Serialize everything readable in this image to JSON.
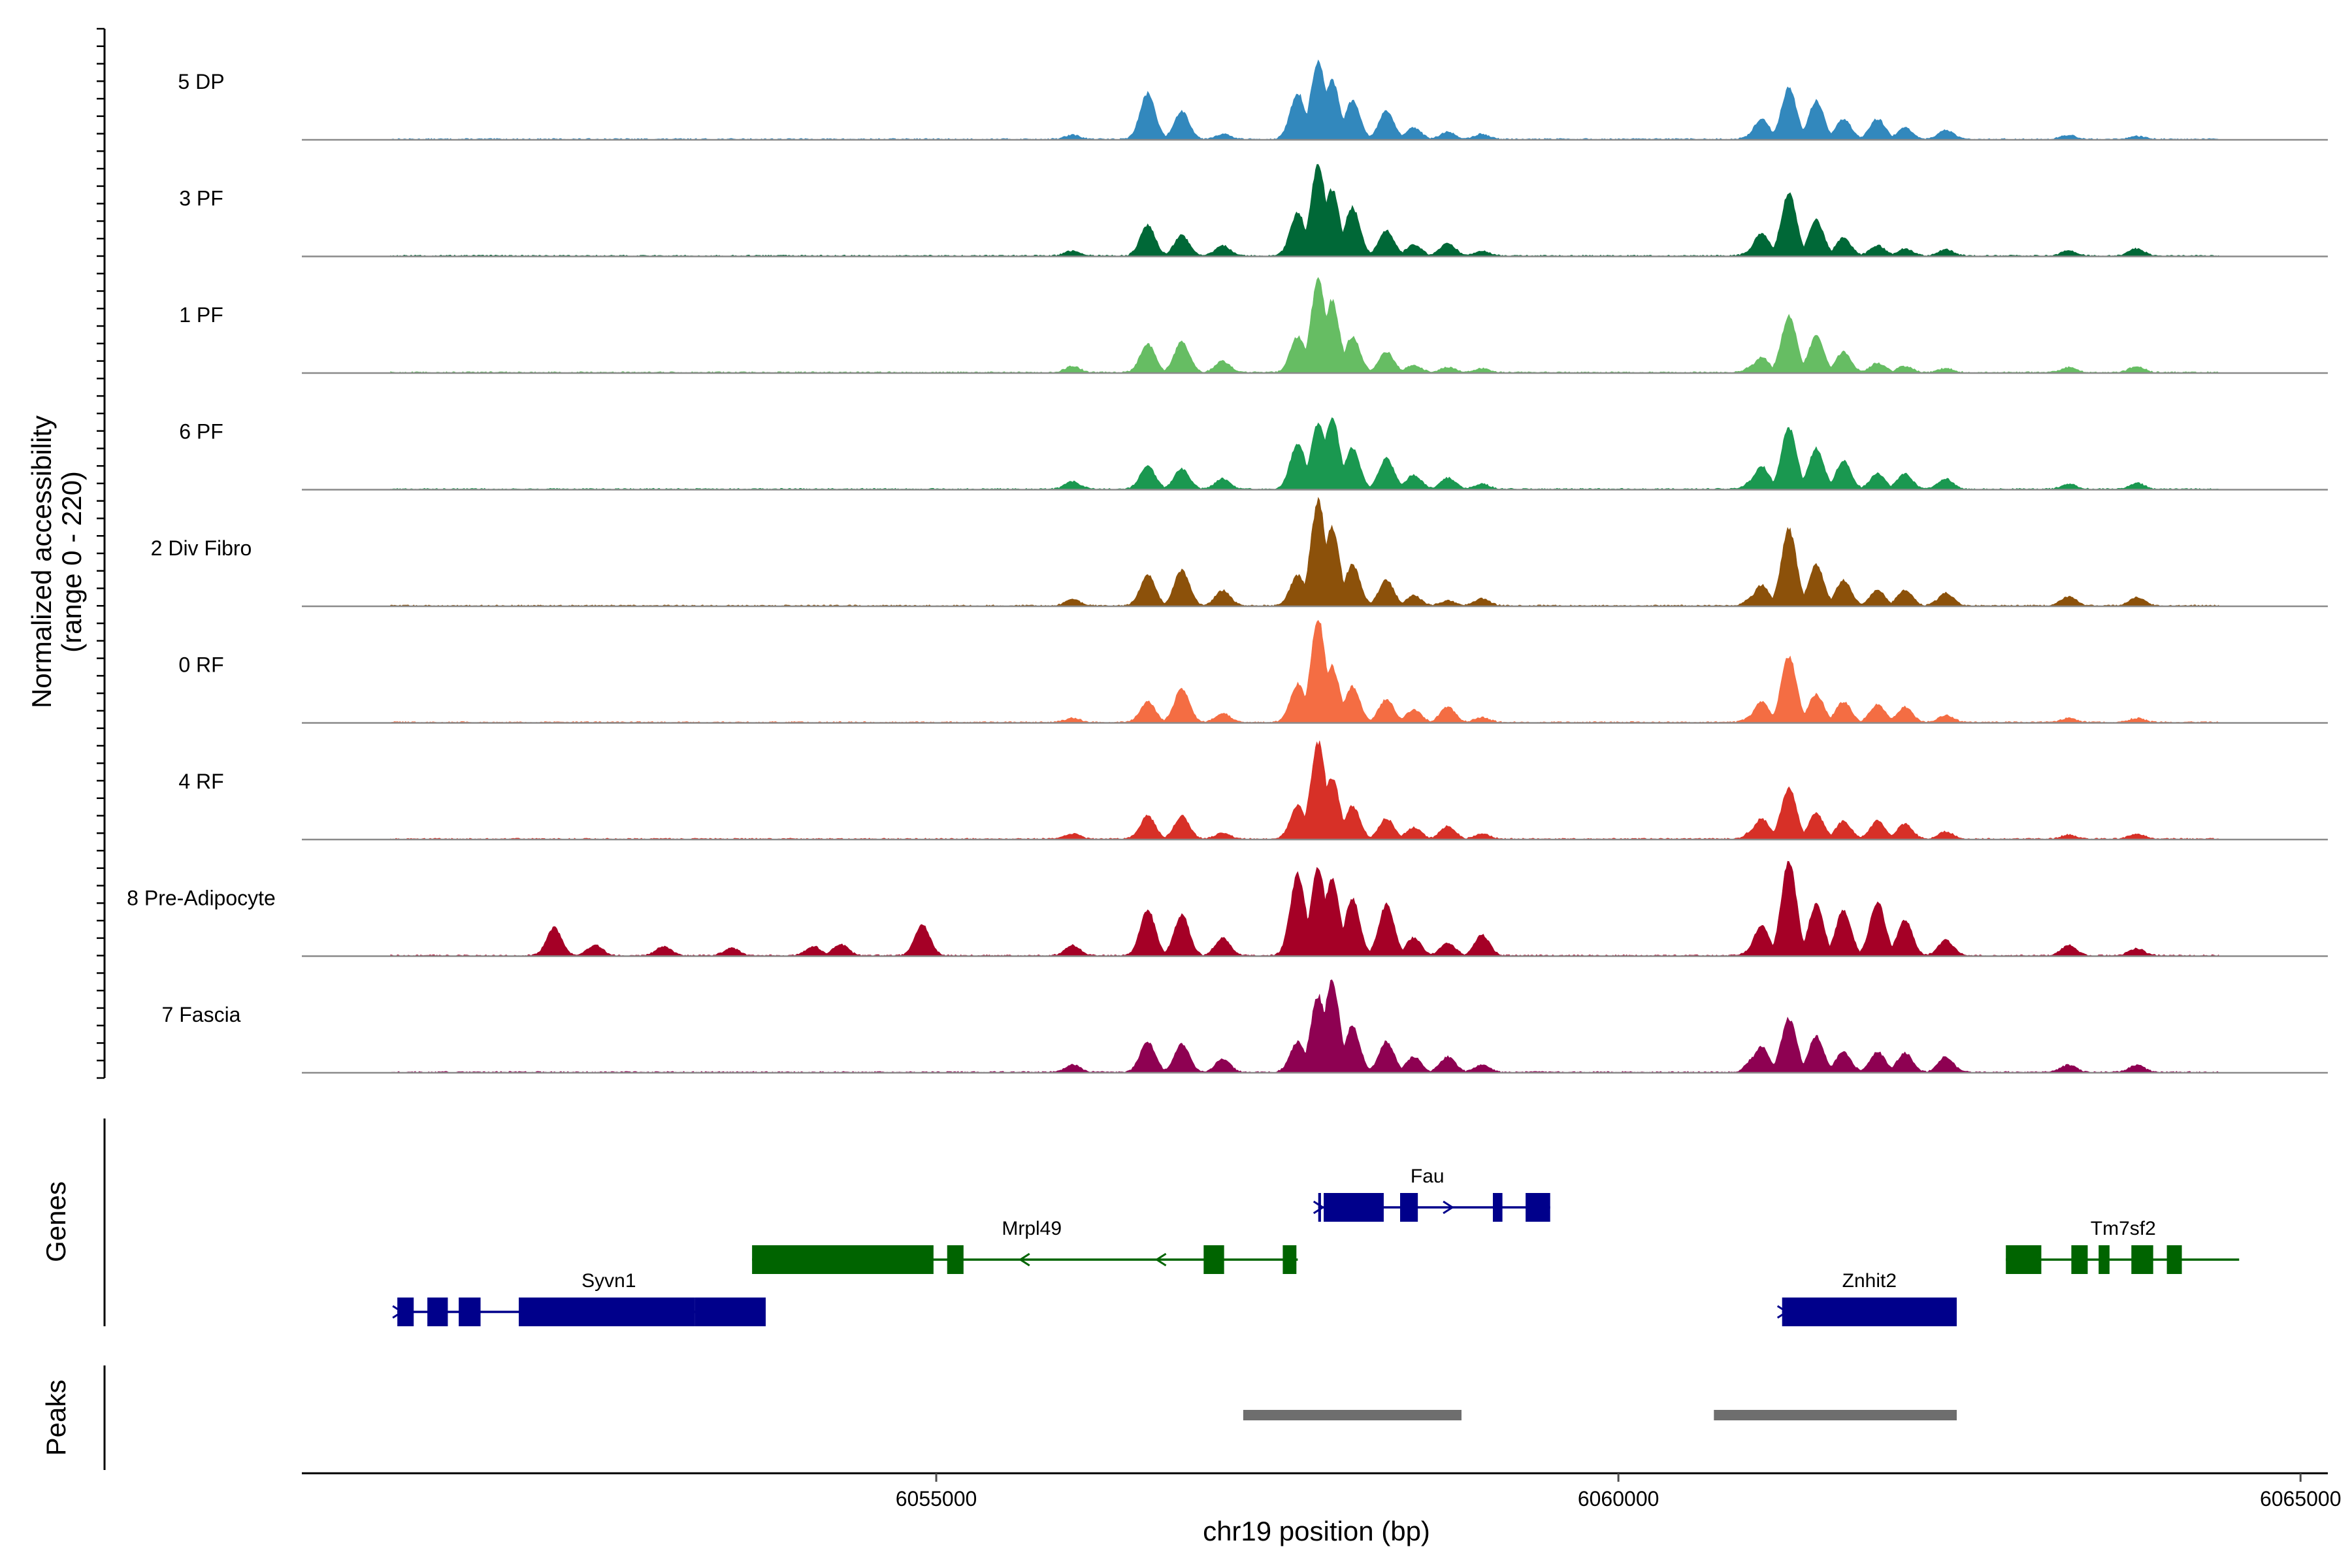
{
  "chart_data": {
    "type": "area",
    "title": "",
    "xlabel": "chr19 position (bp)",
    "ylabel": "Normalized accessibility",
    "ylabel_range": "(range 0 - 220)",
    "ylim": [
      0,
      220
    ],
    "x_range": [
      6050350,
      6065200
    ],
    "x_ticks": [
      6055000,
      6060000,
      6065000
    ],
    "x_tick_labels": [
      "6055000",
      "6060000",
      "6065000"
    ],
    "genes_label": "Genes",
    "peaks_label": "Peaks",
    "tracks": [
      {
        "name": "5 DP",
        "color": "#3288BD",
        "peaks": [
          [
            6056000,
            8
          ],
          [
            6056550,
            90
          ],
          [
            6056800,
            55
          ],
          [
            6057100,
            10
          ],
          [
            6057650,
            90
          ],
          [
            6057800,
            150
          ],
          [
            6057900,
            115
          ],
          [
            6058050,
            75
          ],
          [
            6058300,
            55
          ],
          [
            6058500,
            22
          ],
          [
            6058750,
            14
          ],
          [
            6059000,
            10
          ],
          [
            6061000,
            10
          ],
          [
            6061000,
            12
          ],
          [
            6061050,
            40
          ],
          [
            6061250,
            100
          ],
          [
            6061450,
            75
          ],
          [
            6061650,
            40
          ],
          [
            6061900,
            40
          ],
          [
            6062100,
            22
          ],
          [
            6062400,
            18
          ],
          [
            6063300,
            8
          ],
          [
            6063800,
            6
          ]
        ]
      },
      {
        "name": "3 PF",
        "color": "#006837",
        "peaks": [
          [
            6056000,
            10
          ],
          [
            6056550,
            60
          ],
          [
            6056800,
            40
          ],
          [
            6057100,
            20
          ],
          [
            6057650,
            85
          ],
          [
            6057800,
            180
          ],
          [
            6057900,
            130
          ],
          [
            6058050,
            95
          ],
          [
            6058300,
            50
          ],
          [
            6058500,
            22
          ],
          [
            6058750,
            25
          ],
          [
            6059000,
            10
          ],
          [
            6061000,
            14
          ],
          [
            6061000,
            12
          ],
          [
            6061050,
            45
          ],
          [
            6061250,
            125
          ],
          [
            6061450,
            70
          ],
          [
            6061650,
            35
          ],
          [
            6061900,
            20
          ],
          [
            6062100,
            14
          ],
          [
            6062400,
            12
          ],
          [
            6063300,
            10
          ],
          [
            6063800,
            14
          ]
        ]
      },
      {
        "name": "1 PF",
        "color": "#66BD63",
        "peaks": [
          [
            6056000,
            12
          ],
          [
            6056550,
            55
          ],
          [
            6056800,
            60
          ],
          [
            6057100,
            22
          ],
          [
            6057650,
            70
          ],
          [
            6057800,
            180
          ],
          [
            6057900,
            140
          ],
          [
            6058050,
            70
          ],
          [
            6058300,
            40
          ],
          [
            6058500,
            14
          ],
          [
            6058750,
            10
          ],
          [
            6059000,
            8
          ],
          [
            6061000,
            10
          ],
          [
            6061000,
            16
          ],
          [
            6061050,
            30
          ],
          [
            6061250,
            110
          ],
          [
            6061450,
            70
          ],
          [
            6061650,
            40
          ],
          [
            6061900,
            18
          ],
          [
            6062100,
            12
          ],
          [
            6062400,
            8
          ],
          [
            6063300,
            10
          ],
          [
            6063800,
            12
          ]
        ]
      },
      {
        "name": "6 PF",
        "color": "#1A9850",
        "peaks": [
          [
            6056000,
            15
          ],
          [
            6056550,
            45
          ],
          [
            6056800,
            40
          ],
          [
            6057100,
            20
          ],
          [
            6057650,
            90
          ],
          [
            6057800,
            130
          ],
          [
            6057900,
            140
          ],
          [
            6058050,
            80
          ],
          [
            6058300,
            60
          ],
          [
            6058500,
            28
          ],
          [
            6058750,
            22
          ],
          [
            6059000,
            10
          ],
          [
            6061000,
            12
          ],
          [
            6061000,
            20
          ],
          [
            6061050,
            45
          ],
          [
            6061250,
            120
          ],
          [
            6061450,
            80
          ],
          [
            6061650,
            55
          ],
          [
            6061900,
            30
          ],
          [
            6062100,
            30
          ],
          [
            6062400,
            20
          ],
          [
            6063300,
            10
          ],
          [
            6063800,
            12
          ]
        ]
      },
      {
        "name": "2 Div Fibro",
        "color": "#8C510A",
        "peaks": [
          [
            6056000,
            12
          ],
          [
            6056550,
            60
          ],
          [
            6056800,
            70
          ],
          [
            6057100,
            30
          ],
          [
            6057650,
            60
          ],
          [
            6057800,
            205
          ],
          [
            6057900,
            155
          ],
          [
            6058050,
            80
          ],
          [
            6058300,
            50
          ],
          [
            6058500,
            20
          ],
          [
            6058750,
            10
          ],
          [
            6059000,
            14
          ],
          [
            6061000,
            18
          ],
          [
            6061000,
            22
          ],
          [
            6061050,
            40
          ],
          [
            6061250,
            150
          ],
          [
            6061450,
            80
          ],
          [
            6061650,
            50
          ],
          [
            6061900,
            30
          ],
          [
            6062100,
            30
          ],
          [
            6062400,
            25
          ],
          [
            6063300,
            18
          ],
          [
            6063800,
            16
          ]
        ]
      },
      {
        "name": "0 RF",
        "color": "#F46D43",
        "peaks": [
          [
            6056000,
            8
          ],
          [
            6056550,
            40
          ],
          [
            6056800,
            65
          ],
          [
            6057100,
            18
          ],
          [
            6057650,
            75
          ],
          [
            6057800,
            200
          ],
          [
            6057900,
            110
          ],
          [
            6058050,
            70
          ],
          [
            6058300,
            45
          ],
          [
            6058500,
            24
          ],
          [
            6058750,
            30
          ],
          [
            6059000,
            10
          ],
          [
            6061000,
            16
          ],
          [
            6061000,
            14
          ],
          [
            6061050,
            40
          ],
          [
            6061250,
            130
          ],
          [
            6061450,
            55
          ],
          [
            6061650,
            40
          ],
          [
            6061900,
            35
          ],
          [
            6062100,
            30
          ],
          [
            6062400,
            14
          ],
          [
            6063300,
            8
          ],
          [
            6063800,
            8
          ]
        ]
      },
      {
        "name": "4 RF",
        "color": "#D73027",
        "peaks": [
          [
            6056000,
            10
          ],
          [
            6056550,
            45
          ],
          [
            6056800,
            45
          ],
          [
            6057100,
            12
          ],
          [
            6057650,
            65
          ],
          [
            6057800,
            190
          ],
          [
            6057900,
            120
          ],
          [
            6058050,
            65
          ],
          [
            6058300,
            40
          ],
          [
            6058500,
            22
          ],
          [
            6058750,
            25
          ],
          [
            6059000,
            10
          ],
          [
            6061000,
            12
          ],
          [
            6061000,
            20
          ],
          [
            6061050,
            40
          ],
          [
            6061250,
            100
          ],
          [
            6061450,
            50
          ],
          [
            6061650,
            35
          ],
          [
            6061900,
            35
          ],
          [
            6062100,
            30
          ],
          [
            6062400,
            14
          ],
          [
            6063300,
            8
          ],
          [
            6063800,
            10
          ]
        ]
      },
      {
        "name": "8 Pre-Adipocyte",
        "color": "#A50026",
        "peaks": [
          [
            6052200,
            55
          ],
          [
            6052500,
            20
          ],
          [
            6053000,
            18
          ],
          [
            6053500,
            15
          ],
          [
            6054100,
            18
          ],
          [
            6054300,
            22
          ],
          [
            6054900,
            60
          ],
          [
            6056000,
            20
          ],
          [
            6056550,
            90
          ],
          [
            6056800,
            80
          ],
          [
            6057100,
            35
          ],
          [
            6057650,
            160
          ],
          [
            6057800,
            170
          ],
          [
            6057900,
            150
          ],
          [
            6058050,
            110
          ],
          [
            6058300,
            100
          ],
          [
            6058500,
            35
          ],
          [
            6058750,
            25
          ],
          [
            6059000,
            40
          ],
          [
            6061000,
            15
          ],
          [
            6061000,
            18
          ],
          [
            6061050,
            60
          ],
          [
            6061250,
            185
          ],
          [
            6061450,
            100
          ],
          [
            6061650,
            90
          ],
          [
            6061900,
            105
          ],
          [
            6062100,
            70
          ],
          [
            6062400,
            30
          ],
          [
            6063300,
            20
          ],
          [
            6063800,
            14
          ]
        ]
      },
      {
        "name": "7 Fascia",
        "color": "#8E0152",
        "peaks": [
          [
            6056000,
            15
          ],
          [
            6056550,
            60
          ],
          [
            6056800,
            55
          ],
          [
            6057100,
            25
          ],
          [
            6057650,
            60
          ],
          [
            6057800,
            150
          ],
          [
            6057900,
            180
          ],
          [
            6058050,
            90
          ],
          [
            6058300,
            60
          ],
          [
            6058500,
            30
          ],
          [
            6058750,
            30
          ],
          [
            6059000,
            14
          ],
          [
            6061000,
            30
          ],
          [
            6061000,
            22
          ],
          [
            6061050,
            50
          ],
          [
            6061250,
            105
          ],
          [
            6061450,
            70
          ],
          [
            6061650,
            40
          ],
          [
            6061900,
            40
          ],
          [
            6062100,
            38
          ],
          [
            6062400,
            30
          ],
          [
            6063300,
            14
          ],
          [
            6063800,
            14
          ]
        ]
      }
    ],
    "genes": [
      {
        "name": "Syvn1",
        "strand": "+",
        "color": "#00008B",
        "row": 3,
        "start": 6051050,
        "end": 6053750,
        "exons": [
          [
            6051050,
            6051170
          ],
          [
            6051270,
            6051420
          ],
          [
            6051500,
            6051660
          ],
          [
            6051940,
            6053230
          ],
          [
            6053230,
            6053750
          ]
        ],
        "arrows": [
          6051050,
          6052000
        ]
      },
      {
        "name": "Mrpl49",
        "strand": "-",
        "color": "#006400",
        "row": 2,
        "start": 6053650,
        "end": 6057650,
        "exons": [
          [
            6053650,
            6054980
          ],
          [
            6055080,
            6055200
          ],
          [
            6056960,
            6057110
          ],
          [
            6057540,
            6057640
          ]
        ],
        "arrows": [
          6055650,
          6056650
        ]
      },
      {
        "name": "Fau",
        "strand": "+",
        "color": "#00008B",
        "row": 1,
        "start": 6057800,
        "end": 6059500,
        "exons": [
          [
            6057800,
            6057820
          ],
          [
            6057840,
            6058280
          ],
          [
            6058400,
            6058530
          ],
          [
            6059080,
            6059150
          ],
          [
            6059320,
            6059500
          ]
        ],
        "arrows": [
          6057800,
          6058750
        ]
      },
      {
        "name": "Znhit2",
        "strand": "+",
        "color": "#00008B",
        "row": 3,
        "start": 6061200,
        "end": 6062480,
        "exons": [
          [
            6061200,
            6061230
          ],
          [
            6061230,
            6062480
          ]
        ],
        "arrows": [
          6061200
        ]
      },
      {
        "name": "Tm7sf2",
        "strand": "+",
        "color": "#006400",
        "row": 2,
        "start": 6062840,
        "end": 6064550,
        "exons": [
          [
            6062840,
            6063100
          ],
          [
            6063320,
            6063440
          ],
          [
            6063520,
            6063600
          ],
          [
            6063760,
            6063920
          ],
          [
            6064020,
            6064130
          ]
        ],
        "arrows": []
      }
    ],
    "peak_regions": [
      [
        6057250,
        6058850
      ],
      [
        6060700,
        6062480
      ]
    ]
  }
}
